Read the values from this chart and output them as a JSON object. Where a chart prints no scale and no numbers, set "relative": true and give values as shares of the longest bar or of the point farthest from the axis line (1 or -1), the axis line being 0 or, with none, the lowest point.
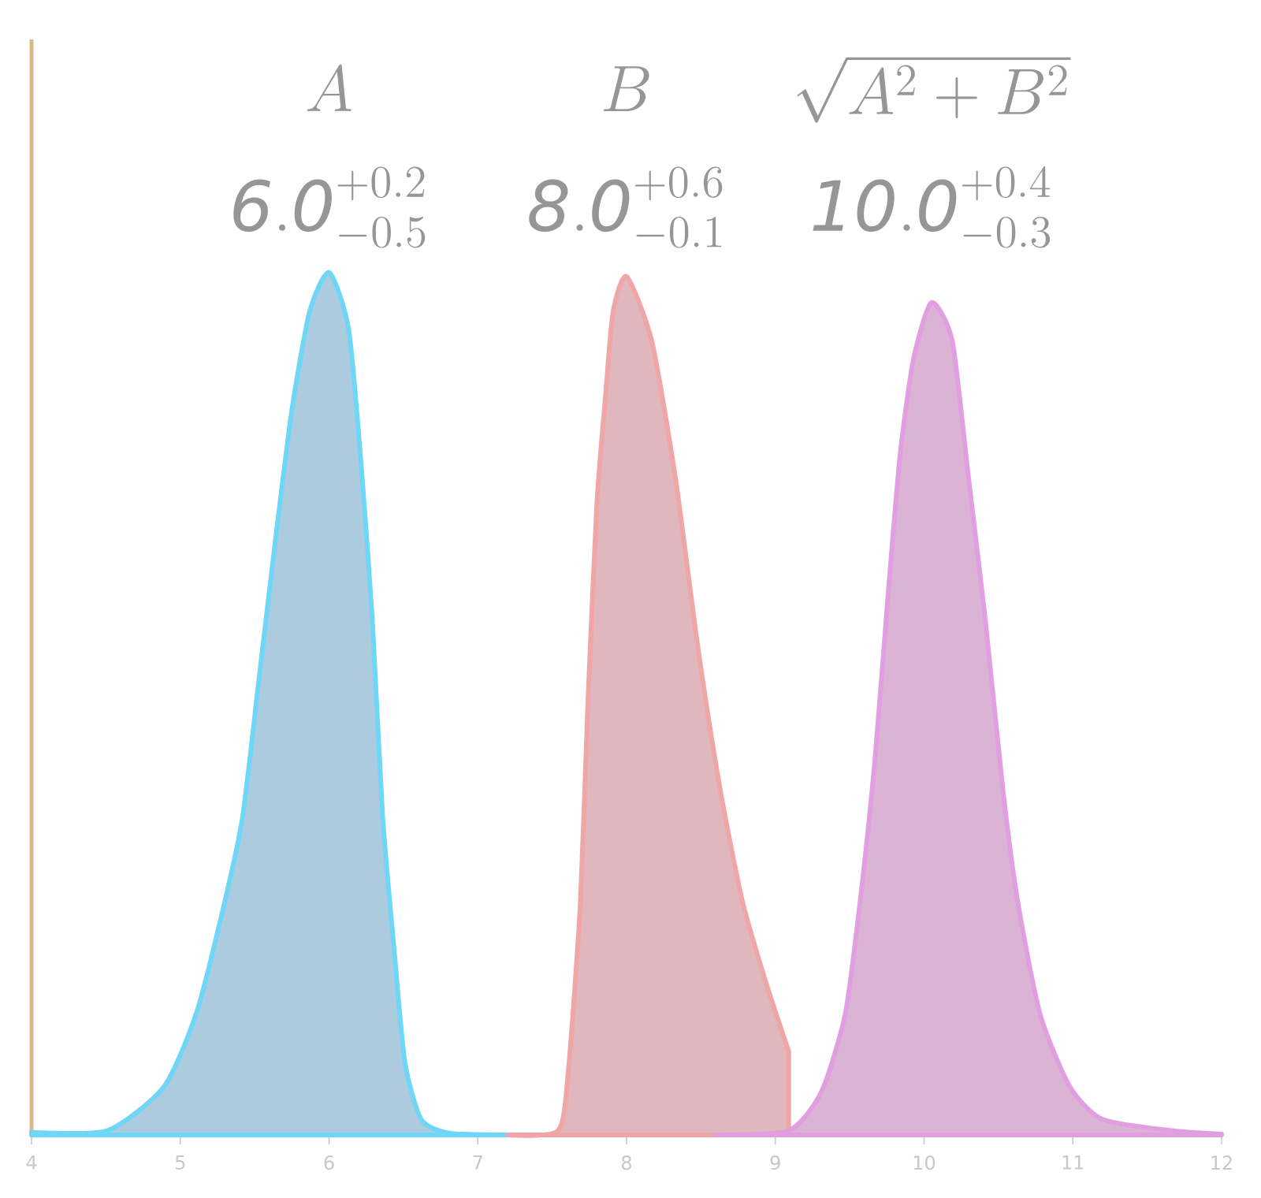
{
  "chart_data": {
    "type": "area",
    "relative": true,
    "xlim": [
      4,
      12
    ],
    "xticks": [
      4,
      5,
      6,
      7,
      8,
      9,
      10,
      11,
      12
    ],
    "annotations": [
      "A",
      "\\mathit{6.0}^{+0.2}_{-0.5}",
      "B",
      "\\mathit{8.0}^{+0.6}_{-0.1}",
      "\\sqrt{A^2+B^2}",
      "\\mathit{10.0}^{+0.4}_{-0.3}"
    ],
    "series": [
      {
        "color": "#6fd6f8",
        "x": [
          4.0,
          4.51,
          4.89,
          5.11,
          5.3,
          5.42,
          5.53,
          5.64,
          5.75,
          5.87,
          6.0,
          6.13,
          6.21,
          6.29,
          6.36,
          6.44,
          6.51,
          6.62,
          6.81,
          7.2
        ],
        "values": [
          0.003,
          0.005,
          0.056,
          0.142,
          0.271,
          0.37,
          0.53,
          0.69,
          0.84,
          0.955,
          1.0,
          0.936,
          0.79,
          0.6,
          0.37,
          0.21,
          0.084,
          0.018,
          0.002,
          0.0
        ]
      },
      {
        "color": "#eea6a6",
        "x": [
          7.2,
          7.54,
          7.61,
          7.69,
          7.74,
          7.8,
          7.86,
          7.91,
          8.0,
          8.17,
          8.33,
          8.48,
          8.63,
          8.78,
          8.94,
          9.09
        ],
        "values": [
          0.0,
          0.005,
          0.077,
          0.27,
          0.5,
          0.73,
          0.86,
          0.955,
          0.995,
          0.92,
          0.76,
          0.565,
          0.4,
          0.27,
          0.175,
          0.097
        ]
      },
      {
        "color": "#e19ee0",
        "x": [
          8.6,
          9.09,
          9.31,
          9.47,
          9.57,
          9.67,
          9.76,
          9.84,
          9.93,
          10.05,
          10.19,
          10.3,
          10.41,
          10.53,
          10.63,
          10.78,
          10.98,
          11.2,
          11.66,
          12.0
        ],
        "values": [
          0.0,
          0.005,
          0.05,
          0.14,
          0.27,
          0.435,
          0.63,
          0.79,
          0.9,
          0.965,
          0.92,
          0.76,
          0.6,
          0.4,
          0.27,
          0.14,
          0.056,
          0.018,
          0.005,
          0.001
        ]
      }
    ]
  }
}
